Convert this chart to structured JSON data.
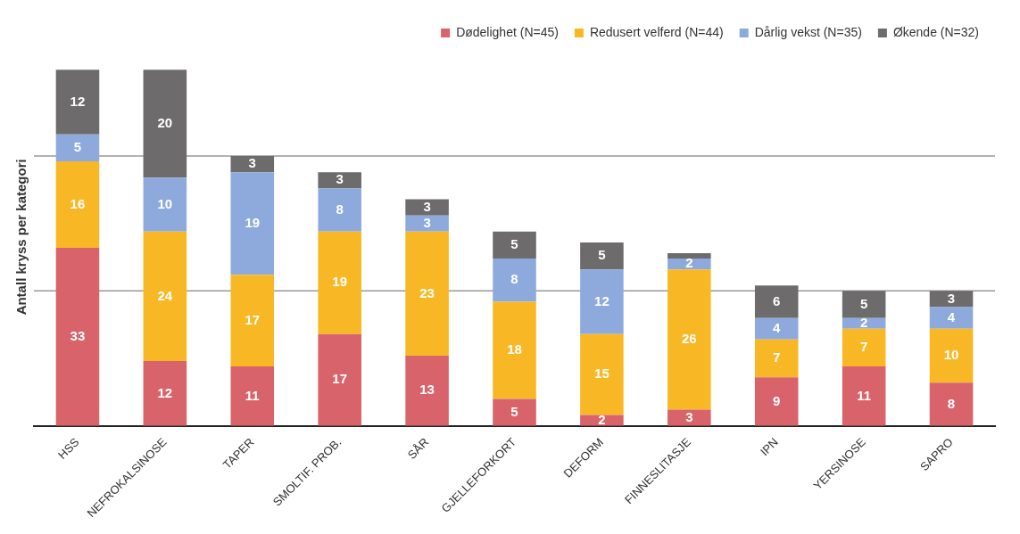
{
  "chart_data": {
    "type": "bar",
    "stacked": true,
    "ylabel": "Antall kryss per kategori",
    "categories": [
      "HSS",
      "NEFROKALSINOSE",
      "TAPER",
      "SMOLTIF. PROB.",
      "SÅR",
      "GJELLEFORKORT",
      "DEFORM",
      "FINNESLITASJE",
      "IPN",
      "YERSINOSE",
      "SAPRO"
    ],
    "series": [
      {
        "name": "Dødelighet (N=45)",
        "color": "#d9636a",
        "values": [
          33,
          12,
          11,
          17,
          13,
          5,
          2,
          3,
          9,
          11,
          8
        ],
        "value_labels": [
          "33",
          "12",
          "11",
          "17",
          "13",
          "5",
          "2",
          "3",
          "9",
          "11",
          "8"
        ]
      },
      {
        "name": "Redusert velferd (N=44)",
        "color": "#f8b825",
        "values": [
          16,
          24,
          17,
          19,
          23,
          18,
          15,
          26,
          7,
          7,
          10
        ],
        "value_labels": [
          "16",
          "24",
          "17",
          "19",
          "23",
          "18",
          "15",
          "26",
          "7",
          "7",
          "10"
        ]
      },
      {
        "name": "Dårlig vekst (N=35)",
        "color": "#8eaadc",
        "values": [
          5,
          10,
          19,
          8,
          3,
          8,
          12,
          2,
          4,
          2,
          4
        ],
        "value_labels": [
          "5",
          "10",
          "19",
          "8",
          "3",
          "8",
          "12",
          "2",
          "4",
          "2",
          "4"
        ]
      },
      {
        "name": "Økende (N=32)",
        "color": "#6d6b6c",
        "values": [
          12,
          20,
          3,
          3,
          3,
          5,
          5,
          1,
          6,
          5,
          3
        ],
        "value_labels": [
          "12",
          "20",
          "3",
          "3",
          "3",
          "5",
          "5",
          null,
          "6",
          "5",
          "3"
        ]
      }
    ],
    "ref_lines": [
      {
        "axis": "y",
        "value": 25,
        "color": "#999999"
      },
      {
        "axis": "y",
        "value": 50,
        "color": "#999999"
      }
    ],
    "tick_labels": "x",
    "legend": "top right"
  }
}
